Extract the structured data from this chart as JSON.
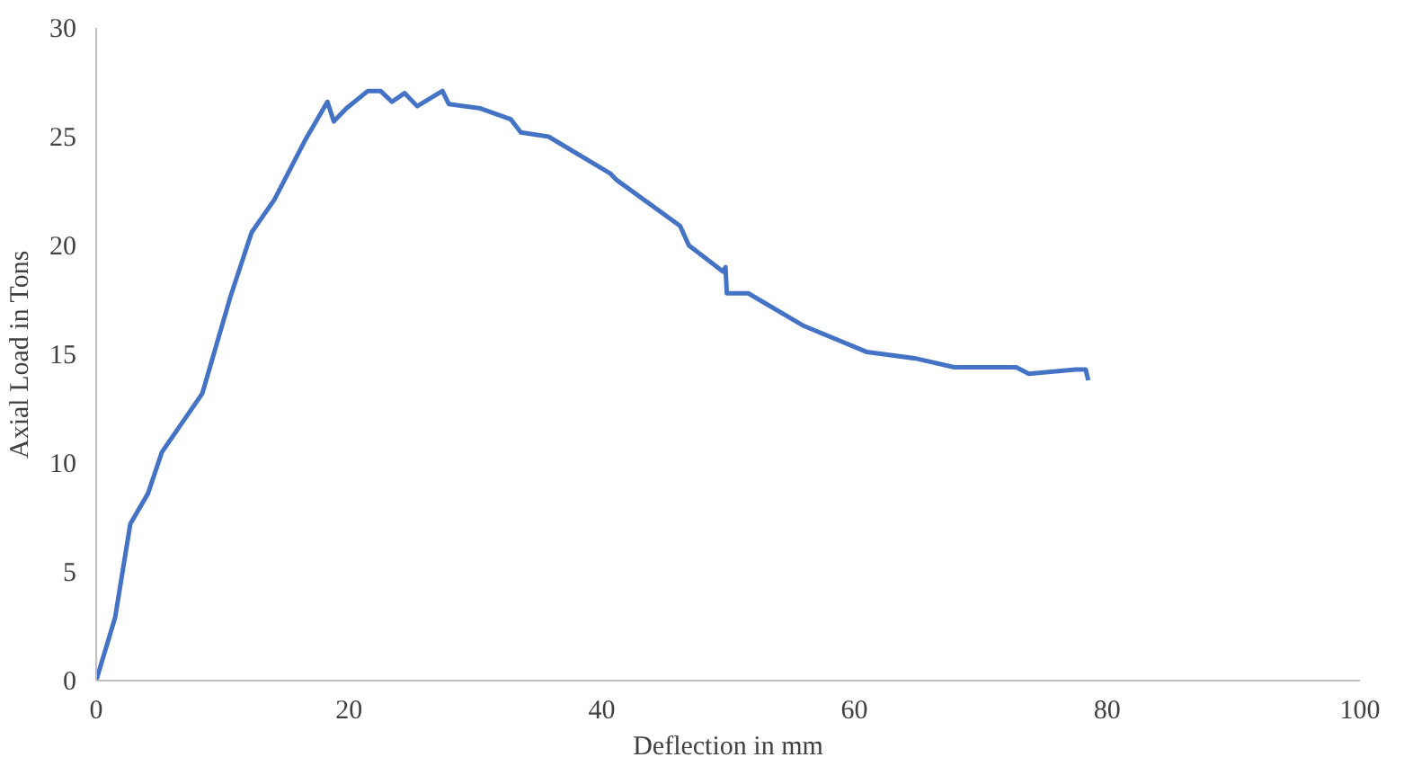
{
  "chart_data": {
    "type": "line",
    "xlabel": "Deflection in mm",
    "ylabel": "Axial Load in Tons",
    "xlim": [
      0,
      100
    ],
    "xticks": [
      0,
      20,
      40,
      60,
      80,
      100
    ],
    "ylim": [
      0,
      30
    ],
    "yticks": [
      0,
      5,
      10,
      15,
      20,
      25,
      30
    ],
    "grid": false,
    "line_style": "solid",
    "series": [
      {
        "color": "#4472c4",
        "x": [
          0,
          1.5,
          2.7,
          4.1,
          5.2,
          8.4,
          10.6,
          12.3,
          14.1,
          16.5,
          18.3,
          18.8,
          19.8,
          21.5,
          22.5,
          23.4,
          24.4,
          25.4,
          27.4,
          27.9,
          30.4,
          32.8,
          33.6,
          35.8,
          40.7,
          41.2,
          46.2,
          46.9,
          49.6,
          49.8,
          49.9,
          51.6,
          56.0,
          61.0,
          64.9,
          67.9,
          72.8,
          73.8,
          77.5,
          78.3,
          78.5
        ],
        "values": [
          0,
          2.9,
          7.2,
          8.6,
          10.5,
          13.2,
          17.6,
          20.6,
          22.1,
          24.8,
          26.6,
          25.7,
          26.3,
          27.1,
          27.1,
          26.6,
          27.0,
          26.4,
          27.1,
          26.5,
          26.3,
          25.8,
          25.2,
          25.0,
          23.3,
          23.0,
          20.9,
          20.0,
          18.8,
          19.0,
          17.8,
          17.8,
          16.3,
          15.1,
          14.8,
          14.4,
          14.4,
          14.1,
          14.3,
          14.3,
          13.8
        ]
      }
    ]
  }
}
